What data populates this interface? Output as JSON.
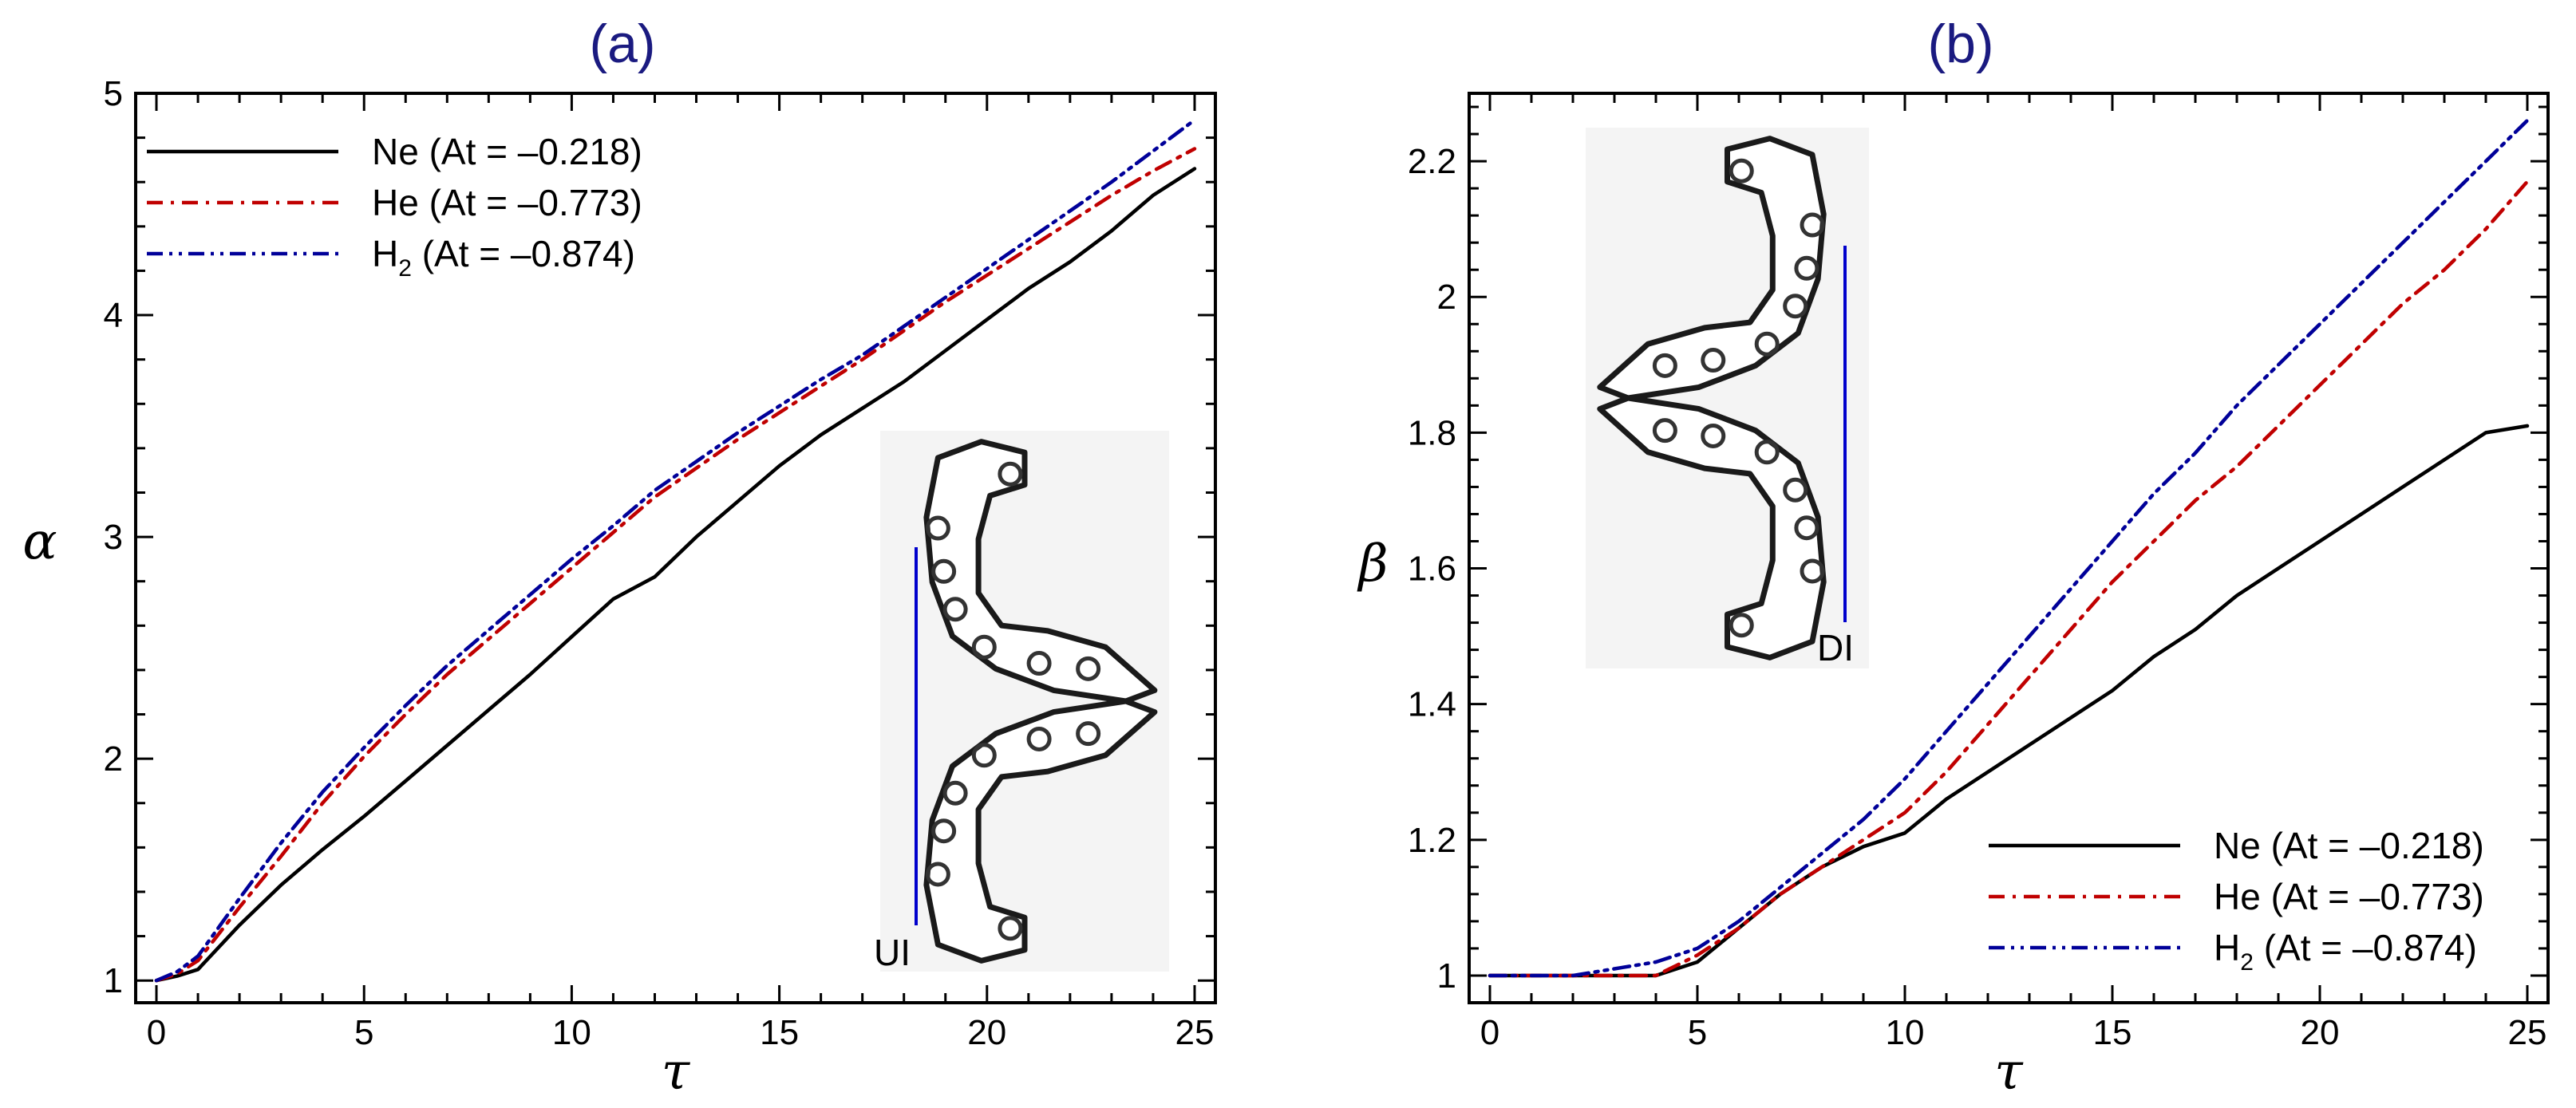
{
  "colors": {
    "ne": "#000000",
    "he": "#c00000",
    "h2": "#000099",
    "title": "#1a1a80",
    "interface": "#0000cc"
  },
  "chart_data": [
    {
      "type": "line",
      "title": "(a)",
      "xlabel": "τ",
      "ylabel": "α",
      "xlim": [
        -0.5,
        25.5
      ],
      "ylim": [
        0.9,
        5.0
      ],
      "xticks": [
        0,
        5,
        10,
        15,
        20,
        25
      ],
      "yticks": [
        1,
        2,
        3,
        4,
        5
      ],
      "legend_position": "top-left",
      "inset_label": "UI",
      "series": [
        {
          "key": "ne",
          "name": "Ne (At = –0.218)",
          "label": "Ne (At = –0.218)",
          "color": "#000000",
          "dash": "",
          "x": [
            0,
            0.5,
            1,
            2,
            3,
            4,
            5,
            6,
            7,
            8,
            9,
            10,
            11,
            12,
            13,
            14,
            15,
            16,
            17,
            18,
            19,
            20,
            21,
            22,
            23,
            24,
            25
          ],
          "y": [
            1.0,
            1.02,
            1.05,
            1.25,
            1.43,
            1.59,
            1.74,
            1.9,
            2.06,
            2.22,
            2.38,
            2.55,
            2.72,
            2.82,
            3.0,
            3.16,
            3.32,
            3.46,
            3.58,
            3.7,
            3.84,
            3.98,
            4.12,
            4.24,
            4.38,
            4.54,
            4.66
          ]
        },
        {
          "key": "he",
          "name": "He (At = –0.773)",
          "label": "He (At = –0.773)",
          "color": "#c00000",
          "dash": "20,10,4,10",
          "x": [
            0,
            0.5,
            1,
            2,
            3,
            4,
            5,
            6,
            7,
            8,
            9,
            10,
            11,
            12,
            13,
            14,
            15,
            16,
            17,
            18,
            19,
            20,
            21,
            22,
            23,
            24,
            25
          ],
          "y": [
            1.0,
            1.03,
            1.09,
            1.33,
            1.56,
            1.8,
            2.01,
            2.2,
            2.38,
            2.54,
            2.7,
            2.86,
            3.02,
            3.18,
            3.31,
            3.44,
            3.56,
            3.68,
            3.8,
            3.93,
            4.06,
            4.18,
            4.3,
            4.42,
            4.54,
            4.65,
            4.75
          ]
        },
        {
          "key": "h2",
          "name": "H2 (At = –0.874)",
          "label": "H",
          "sub": "2",
          "label_rest": " (At = –0.874)",
          "color": "#000099",
          "dash": "20,8,4,8,4,8",
          "x": [
            0,
            0.5,
            1,
            2,
            3,
            4,
            5,
            6,
            7,
            8,
            9,
            10,
            11,
            12,
            13,
            14,
            15,
            16,
            17,
            18,
            19,
            20,
            21,
            22,
            23,
            24,
            25
          ],
          "y": [
            1.0,
            1.04,
            1.11,
            1.37,
            1.62,
            1.85,
            2.05,
            2.24,
            2.42,
            2.58,
            2.74,
            2.9,
            3.05,
            3.21,
            3.34,
            3.47,
            3.59,
            3.71,
            3.82,
            3.95,
            4.08,
            4.21,
            4.34,
            4.47,
            4.6,
            4.74,
            4.88
          ]
        }
      ]
    },
    {
      "type": "line",
      "title": "(b)",
      "xlabel": "τ",
      "ylabel": "β",
      "xlim": [
        -0.5,
        25.5
      ],
      "ylim": [
        0.96,
        2.3
      ],
      "xticks": [
        0,
        5,
        10,
        15,
        20,
        25
      ],
      "yticks": [
        1,
        1.2,
        1.4,
        1.6,
        1.8,
        2,
        2.2
      ],
      "legend_position": "bottom-right",
      "inset_label": "DI",
      "series": [
        {
          "key": "ne",
          "name": "Ne (At = –0.218)",
          "label": "Ne (At = –0.218)",
          "color": "#000000",
          "dash": "",
          "x": [
            0,
            1,
            2,
            3,
            4,
            5,
            6,
            7,
            8,
            9,
            10,
            11,
            12,
            13,
            14,
            15,
            16,
            17,
            18,
            19,
            20,
            21,
            22,
            23,
            24,
            25
          ],
          "y": [
            1.0,
            1.0,
            1.0,
            1.0,
            1.0,
            1.02,
            1.07,
            1.12,
            1.16,
            1.19,
            1.21,
            1.26,
            1.3,
            1.34,
            1.38,
            1.42,
            1.47,
            1.51,
            1.56,
            1.6,
            1.64,
            1.68,
            1.72,
            1.76,
            1.8,
            1.81
          ]
        },
        {
          "key": "he",
          "name": "He (At = –0.773)",
          "label": "He (At = –0.773)",
          "color": "#c00000",
          "dash": "20,10,4,10",
          "x": [
            0,
            1,
            2,
            3,
            4,
            5,
            6,
            7,
            8,
            9,
            10,
            11,
            12,
            13,
            14,
            15,
            16,
            17,
            18,
            19,
            20,
            21,
            22,
            23,
            24,
            25
          ],
          "y": [
            1.0,
            1.0,
            1.0,
            1.0,
            1.0,
            1.03,
            1.07,
            1.12,
            1.16,
            1.2,
            1.24,
            1.3,
            1.37,
            1.44,
            1.51,
            1.58,
            1.64,
            1.7,
            1.75,
            1.81,
            1.87,
            1.93,
            1.99,
            2.04,
            2.1,
            2.17
          ]
        },
        {
          "key": "h2",
          "name": "H2 (At = –0.874)",
          "label": "H",
          "sub": "2",
          "label_rest": " (At = –0.874)",
          "color": "#000099",
          "dash": "20,8,4,8,4,8",
          "x": [
            0,
            1,
            2,
            3,
            4,
            5,
            6,
            7,
            8,
            9,
            10,
            11,
            12,
            13,
            14,
            15,
            16,
            17,
            18,
            19,
            20,
            21,
            22,
            23,
            24,
            25
          ],
          "y": [
            1.0,
            1.0,
            1.0,
            1.01,
            1.02,
            1.04,
            1.08,
            1.13,
            1.18,
            1.23,
            1.29,
            1.36,
            1.43,
            1.5,
            1.57,
            1.64,
            1.71,
            1.77,
            1.84,
            1.9,
            1.96,
            2.02,
            2.08,
            2.14,
            2.2,
            2.26
          ]
        }
      ]
    }
  ]
}
